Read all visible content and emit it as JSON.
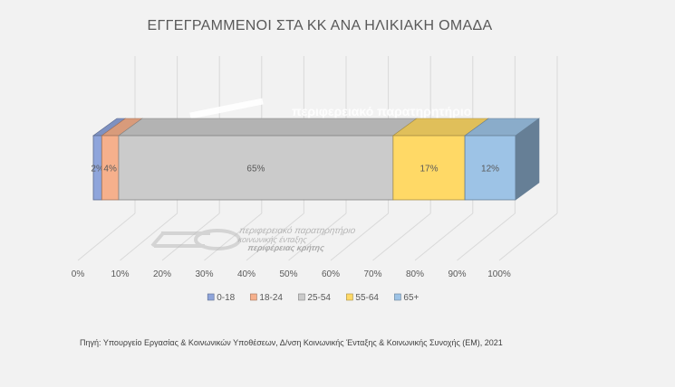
{
  "chart_data": {
    "type": "bar",
    "orientation": "horizontal",
    "stacked": "percent",
    "three_d": true,
    "title": "ΕΓΓΕΓΡΑΜΜΕΝΟΙ ΣΤΑ ΚΚ ΑΝΑ ΗΛΙΚΙΑΚΗ ΟΜΑΔΑ",
    "xlim": [
      0,
      100
    ],
    "x_ticks": [
      "0%",
      "10%",
      "20%",
      "30%",
      "40%",
      "50%",
      "60%",
      "70%",
      "80%",
      "90%",
      "100%"
    ],
    "series": [
      {
        "name": "0-18",
        "value": 2,
        "label": "2%",
        "color": "#8fa5db"
      },
      {
        "name": "18-24",
        "value": 4,
        "label": "4%",
        "color": "#f6b08c"
      },
      {
        "name": "25-54",
        "value": 65,
        "label": "65%",
        "color": "#cbcbcb"
      },
      {
        "name": "55-64",
        "value": 17,
        "label": "17%",
        "color": "#ffd966"
      },
      {
        "name": "65+",
        "value": 12,
        "label": "12%",
        "color": "#9dc3e6"
      }
    ],
    "grid": true,
    "legend_position": "bottom"
  },
  "watermark": {
    "line1": "περιφερειακό παρατηρητήριο",
    "line2": "κοινωνικής ένταξης",
    "line3": "περιφέρειας κρήτης"
  },
  "source": "Πηγή: Υπουργείο Εργασίας & Κοινωνικών Υποθέσεων, Δ/νση Κοινωνικής Ένταξης & Κοινωνικής Συνοχής (ΕΜ), 2021"
}
